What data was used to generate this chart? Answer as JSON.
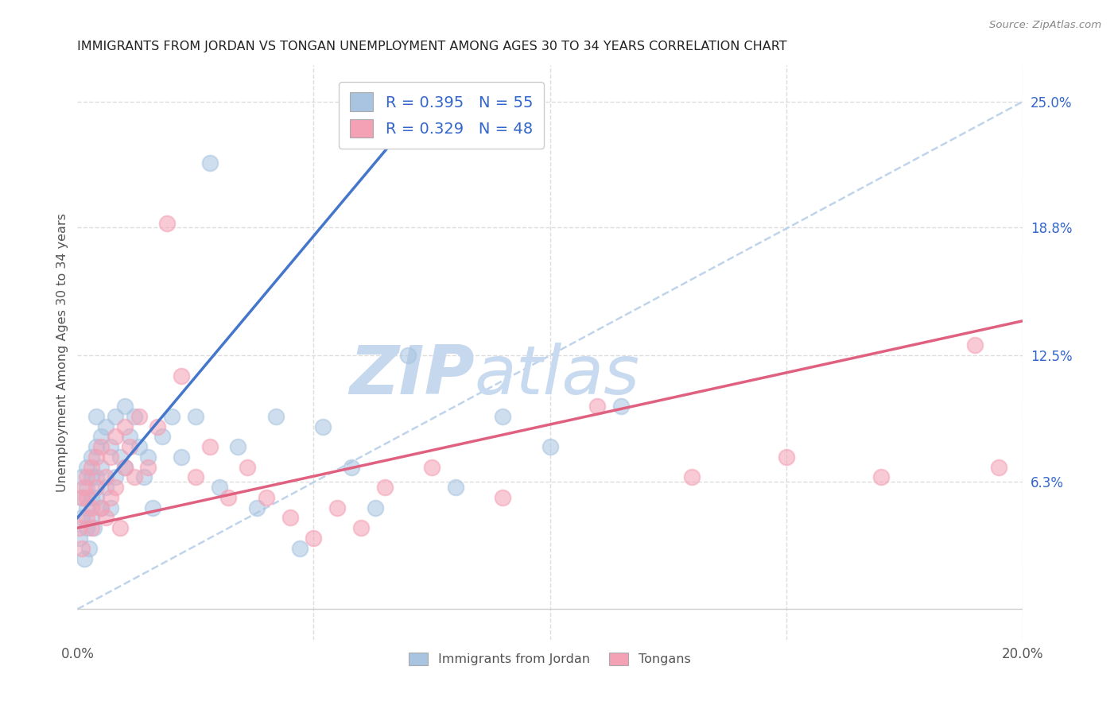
{
  "title": "IMMIGRANTS FROM JORDAN VS TONGAN UNEMPLOYMENT AMONG AGES 30 TO 34 YEARS CORRELATION CHART",
  "source": "Source: ZipAtlas.com",
  "ylabel": "Unemployment Among Ages 30 to 34 years",
  "x_min": 0.0,
  "x_max": 0.2,
  "y_min": -0.015,
  "y_max": 0.268,
  "y_tick_labels_right": [
    "25.0%",
    "18.8%",
    "12.5%",
    "6.3%"
  ],
  "y_tick_values_right": [
    0.25,
    0.188,
    0.125,
    0.063
  ],
  "jordan_color": "#a8c4e0",
  "tongan_color": "#f4a0b5",
  "jordan_line_color": "#4477cc",
  "tongan_line_color": "#e06080",
  "dashed_line_color": "#b8d0e8",
  "jordan_R": 0.395,
  "jordan_N": 55,
  "tongan_R": 0.329,
  "tongan_N": 48,
  "jordan_scatter_x": [
    0.0005,
    0.001,
    0.001,
    0.001,
    0.0015,
    0.002,
    0.002,
    0.002,
    0.002,
    0.0025,
    0.003,
    0.003,
    0.003,
    0.003,
    0.0035,
    0.004,
    0.004,
    0.004,
    0.004,
    0.005,
    0.005,
    0.005,
    0.006,
    0.006,
    0.007,
    0.007,
    0.008,
    0.008,
    0.009,
    0.01,
    0.01,
    0.011,
    0.012,
    0.013,
    0.014,
    0.015,
    0.016,
    0.018,
    0.02,
    0.022,
    0.025,
    0.028,
    0.03,
    0.034,
    0.038,
    0.042,
    0.047,
    0.052,
    0.058,
    0.063,
    0.07,
    0.08,
    0.09,
    0.1,
    0.115
  ],
  "jordan_scatter_y": [
    0.035,
    0.045,
    0.055,
    0.065,
    0.025,
    0.05,
    0.06,
    0.07,
    0.04,
    0.03,
    0.045,
    0.055,
    0.065,
    0.075,
    0.04,
    0.055,
    0.065,
    0.08,
    0.095,
    0.05,
    0.07,
    0.085,
    0.06,
    0.09,
    0.05,
    0.08,
    0.065,
    0.095,
    0.075,
    0.07,
    0.1,
    0.085,
    0.095,
    0.08,
    0.065,
    0.075,
    0.05,
    0.085,
    0.095,
    0.075,
    0.095,
    0.22,
    0.06,
    0.08,
    0.05,
    0.095,
    0.03,
    0.09,
    0.07,
    0.05,
    0.125,
    0.06,
    0.095,
    0.08,
    0.1
  ],
  "tongan_scatter_x": [
    0.0005,
    0.001,
    0.001,
    0.0015,
    0.002,
    0.002,
    0.002,
    0.003,
    0.003,
    0.003,
    0.004,
    0.004,
    0.005,
    0.005,
    0.006,
    0.006,
    0.007,
    0.007,
    0.008,
    0.008,
    0.009,
    0.01,
    0.01,
    0.011,
    0.012,
    0.013,
    0.015,
    0.017,
    0.019,
    0.022,
    0.025,
    0.028,
    0.032,
    0.036,
    0.04,
    0.045,
    0.05,
    0.055,
    0.06,
    0.065,
    0.075,
    0.09,
    0.11,
    0.13,
    0.15,
    0.17,
    0.19,
    0.195
  ],
  "tongan_scatter_y": [
    0.04,
    0.03,
    0.055,
    0.06,
    0.045,
    0.055,
    0.065,
    0.04,
    0.05,
    0.07,
    0.06,
    0.075,
    0.05,
    0.08,
    0.045,
    0.065,
    0.055,
    0.075,
    0.06,
    0.085,
    0.04,
    0.07,
    0.09,
    0.08,
    0.065,
    0.095,
    0.07,
    0.09,
    0.19,
    0.115,
    0.065,
    0.08,
    0.055,
    0.07,
    0.055,
    0.045,
    0.035,
    0.05,
    0.04,
    0.06,
    0.07,
    0.055,
    0.1,
    0.065,
    0.075,
    0.065,
    0.13,
    0.07
  ],
  "jordan_line_x": [
    0.0,
    0.072
  ],
  "jordan_line_y": [
    0.045,
    0.245
  ],
  "tongan_line_x": [
    0.0,
    0.2
  ],
  "tongan_line_y": [
    0.04,
    0.142
  ],
  "diag_line_x": [
    0.0,
    0.2
  ],
  "diag_line_y": [
    0.0,
    0.25
  ],
  "watermark_zip": "ZIP",
  "watermark_atlas": "atlas",
  "watermark_color": "#d0dff0",
  "background_color": "#ffffff",
  "grid_color": "#dddddd",
  "title_color": "#222222",
  "axis_label_color": "#555555",
  "right_tick_color": "#3366cc",
  "legend_text_color": "#3366cc"
}
